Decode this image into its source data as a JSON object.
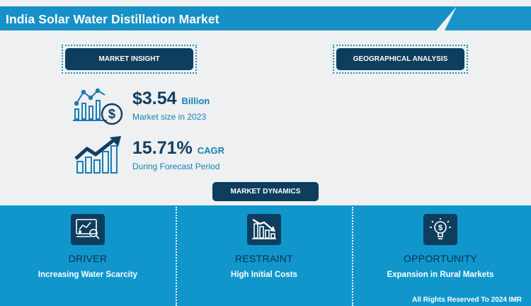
{
  "title": "India Solar Water Distillation Market",
  "sections": {
    "market_insight": "MARKET INSIGHT",
    "geographical_analysis": "GEOGRAPHICAL ANALYSIS",
    "market_dynamics": "MARKET DYNAMICS"
  },
  "stats": {
    "market_size_value": "$3.54",
    "market_size_unit": "Billion",
    "market_size_label": "Market size in 2023",
    "cagr_value": "15.71%",
    "cagr_unit": "CAGR",
    "cagr_label": "During Forecast Period"
  },
  "dynamics": [
    {
      "title": "DRIVER",
      "description": "Increasing Water Scarcity",
      "icon": "analytics-magnifier-icon"
    },
    {
      "title": "RESTRAINT",
      "description": "High Initial Costs",
      "icon": "declining-chart-icon"
    },
    {
      "title": "OPPORTUNITY",
      "description": "Expansion in Rural Markets",
      "icon": "dollar-bulb-icon"
    }
  ],
  "footer": "All Rights Reserved To 2024 IMR",
  "colors": {
    "accent_blue": "#1690c6",
    "navy": "#0e3e5e",
    "background": "#eff0f1"
  }
}
